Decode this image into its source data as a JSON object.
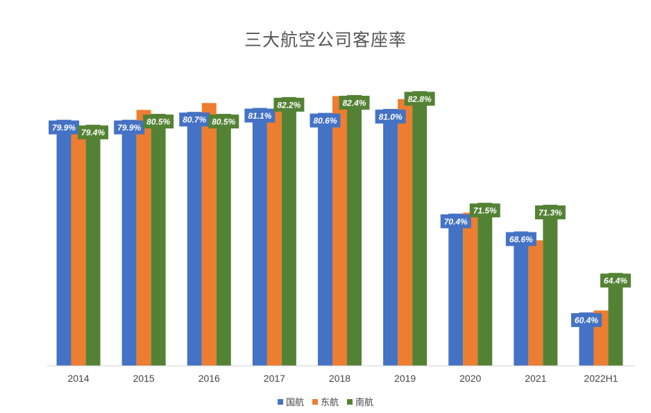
{
  "chart_data": {
    "type": "bar",
    "title": "三大航空公司客座率",
    "categories": [
      "2014",
      "2015",
      "2016",
      "2017",
      "2018",
      "2019",
      "2020",
      "2021",
      "2022H1"
    ],
    "series": [
      {
        "name": "国航",
        "color": "#4472C4",
        "values": [
          79.9,
          79.9,
          80.7,
          81.1,
          80.6,
          81.0,
          70.4,
          68.6,
          60.4
        ]
      },
      {
        "name": "东航",
        "color": "#ED7D31",
        "values": [
          79.2,
          80.9,
          81.6,
          80.9,
          82.3,
          82.0,
          70.5,
          67.7,
          60.6
        ]
      },
      {
        "name": "南航",
        "color": "#548235",
        "values": [
          79.4,
          80.5,
          80.5,
          82.2,
          82.4,
          82.8,
          71.5,
          71.3,
          64.4
        ]
      }
    ],
    "labeled_series": [
      "国航",
      "南航"
    ],
    "ylim": [
      55,
      85
    ],
    "grid": false,
    "legend": "bottom"
  }
}
